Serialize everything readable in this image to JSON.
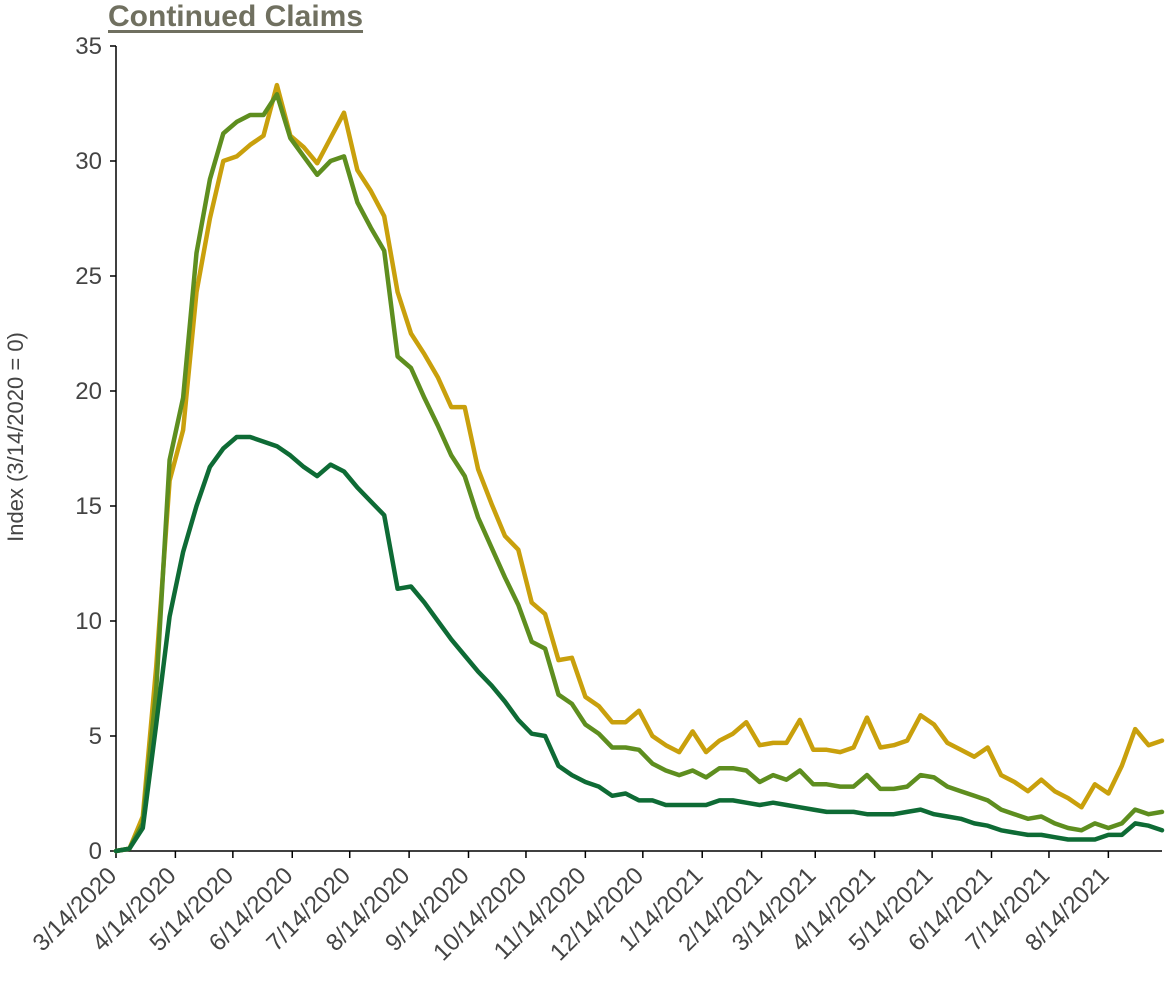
{
  "chart_data": {
    "type": "line",
    "title": "Continued Claims",
    "xlabel": "",
    "ylabel": "Index (3/14/2020 = 0)",
    "ylim": [
      0,
      35
    ],
    "yticks": [
      "0",
      "5",
      "10",
      "15",
      "20",
      "25",
      "30",
      "35"
    ],
    "xticks": [
      "3/14/2020",
      "4/14/2020",
      "5/14/2020",
      "6/14/2020",
      "7/14/2020",
      "8/14/2020",
      "9/14/2020",
      "10/14/2020",
      "11/14/2020",
      "12/14/2020",
      "1/14/2021",
      "2/14/2021",
      "3/14/2021",
      "4/14/2021",
      "5/14/2021",
      "6/14/2021",
      "7/14/2021",
      "8/14/2021"
    ],
    "x": [
      "3/14/2020",
      "3/21/2020",
      "3/28/2020",
      "4/4/2020",
      "4/11/2020",
      "4/18/2020",
      "4/25/2020",
      "5/2/2020",
      "5/9/2020",
      "5/16/2020",
      "5/23/2020",
      "5/30/2020",
      "6/6/2020",
      "6/13/2020",
      "6/20/2020",
      "6/27/2020",
      "7/4/2020",
      "7/11/2020",
      "7/18/2020",
      "7/25/2020",
      "8/1/2020",
      "8/8/2020",
      "8/15/2020",
      "8/22/2020",
      "8/29/2020",
      "9/5/2020",
      "9/12/2020",
      "9/19/2020",
      "9/26/2020",
      "10/3/2020",
      "10/10/2020",
      "10/17/2020",
      "10/24/2020",
      "10/31/2020",
      "11/7/2020",
      "11/14/2020",
      "11/21/2020",
      "11/28/2020",
      "12/5/2020",
      "12/12/2020",
      "12/19/2020",
      "12/26/2020",
      "1/2/2021",
      "1/9/2021",
      "1/16/2021",
      "1/23/2021",
      "1/30/2021",
      "2/6/2021",
      "2/13/2021",
      "2/20/2021",
      "2/27/2021",
      "3/6/2021",
      "3/13/2021",
      "3/20/2021",
      "3/27/2021",
      "4/3/2021",
      "4/10/2021",
      "4/17/2021",
      "4/24/2021",
      "5/1/2021",
      "5/8/2021",
      "5/15/2021",
      "5/22/2021",
      "5/29/2021",
      "6/5/2021",
      "6/12/2021",
      "6/19/2021",
      "6/26/2021",
      "7/3/2021",
      "7/10/2021",
      "7/17/2021",
      "7/24/2021",
      "7/31/2021",
      "8/7/2021",
      "8/14/2021",
      "8/21/2021",
      "8/28/2021",
      "9/4/2021",
      "9/11/2021"
    ],
    "series": [
      {
        "color": "#C9A00C",
        "values": [
          0.0,
          0.1,
          1.5,
          8.0,
          16.1,
          18.3,
          24.3,
          27.5,
          30.0,
          30.2,
          30.7,
          31.1,
          33.3,
          31.1,
          30.6,
          29.9,
          31.0,
          32.1,
          29.6,
          28.7,
          27.6,
          24.3,
          22.5,
          21.6,
          20.6,
          19.3,
          19.3,
          16.6,
          15.1,
          13.7,
          13.1,
          10.8,
          10.3,
          8.3,
          8.4,
          6.7,
          6.3,
          5.6,
          5.6,
          6.1,
          5.0,
          4.6,
          4.3,
          5.2,
          4.3,
          4.8,
          5.1,
          5.6,
          4.6,
          4.7,
          4.7,
          5.7,
          4.4,
          4.4,
          4.3,
          4.5,
          5.8,
          4.5,
          4.6,
          4.8,
          5.9,
          5.5,
          4.7,
          4.4,
          4.1,
          4.5,
          3.3,
          3.0,
          2.6,
          3.1,
          2.6,
          2.3,
          1.9,
          2.9,
          2.5,
          3.7,
          5.3,
          4.6,
          4.8
        ]
      },
      {
        "color": "#5E8E1F",
        "values": [
          0.0,
          0.1,
          1.2,
          7.0,
          17.0,
          19.7,
          26.0,
          29.2,
          31.2,
          31.7,
          32.0,
          32.0,
          32.9,
          31.0,
          30.2,
          29.4,
          30.0,
          30.2,
          28.2,
          27.1,
          26.1,
          21.5,
          21.0,
          19.7,
          18.5,
          17.2,
          16.3,
          14.5,
          13.2,
          11.9,
          10.7,
          9.1,
          8.8,
          6.8,
          6.4,
          5.5,
          5.1,
          4.5,
          4.5,
          4.4,
          3.8,
          3.5,
          3.3,
          3.5,
          3.2,
          3.6,
          3.6,
          3.5,
          3.0,
          3.3,
          3.1,
          3.5,
          2.9,
          2.9,
          2.8,
          2.8,
          3.3,
          2.7,
          2.7,
          2.8,
          3.3,
          3.2,
          2.8,
          2.6,
          2.4,
          2.2,
          1.8,
          1.6,
          1.4,
          1.5,
          1.2,
          1.0,
          0.9,
          1.2,
          1.0,
          1.2,
          1.8,
          1.6,
          1.7
        ]
      },
      {
        "color": "#0E6B35",
        "values": [
          0.0,
          0.1,
          1.0,
          5.5,
          10.2,
          13.0,
          15.0,
          16.7,
          17.5,
          18.0,
          18.0,
          17.8,
          17.6,
          17.2,
          16.7,
          16.3,
          16.8,
          16.5,
          15.8,
          15.2,
          14.6,
          11.4,
          11.5,
          10.8,
          10.0,
          9.2,
          8.5,
          7.8,
          7.2,
          6.5,
          5.7,
          5.1,
          5.0,
          3.7,
          3.3,
          3.0,
          2.8,
          2.4,
          2.5,
          2.2,
          2.2,
          2.0,
          2.0,
          2.0,
          2.0,
          2.2,
          2.2,
          2.1,
          2.0,
          2.1,
          2.0,
          1.9,
          1.8,
          1.7,
          1.7,
          1.7,
          1.6,
          1.6,
          1.6,
          1.7,
          1.8,
          1.6,
          1.5,
          1.4,
          1.2,
          1.1,
          0.9,
          0.8,
          0.7,
          0.7,
          0.6,
          0.5,
          0.5,
          0.5,
          0.7,
          0.7,
          1.2,
          1.1,
          0.9
        ]
      }
    ]
  }
}
